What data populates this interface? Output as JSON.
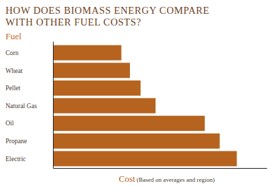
{
  "chart_data": {
    "type": "bar",
    "orientation": "horizontal",
    "title": "HOW DOES BIOMASS ENERGY COMPARE WITH OTHER FUEL COSTS?",
    "ylabel": "Fuel",
    "xlabel": "Cost (Based on averages and region)",
    "categories": [
      "Corn",
      "Wheat",
      "Pellet",
      "Natural Gas",
      "Oil",
      "Propane",
      "Electric"
    ],
    "values": [
      32,
      36,
      41,
      48,
      71,
      78,
      86
    ],
    "color": "#b5631e",
    "xlim": [
      0,
      100
    ],
    "tick_labels": false,
    "grid": false
  }
}
